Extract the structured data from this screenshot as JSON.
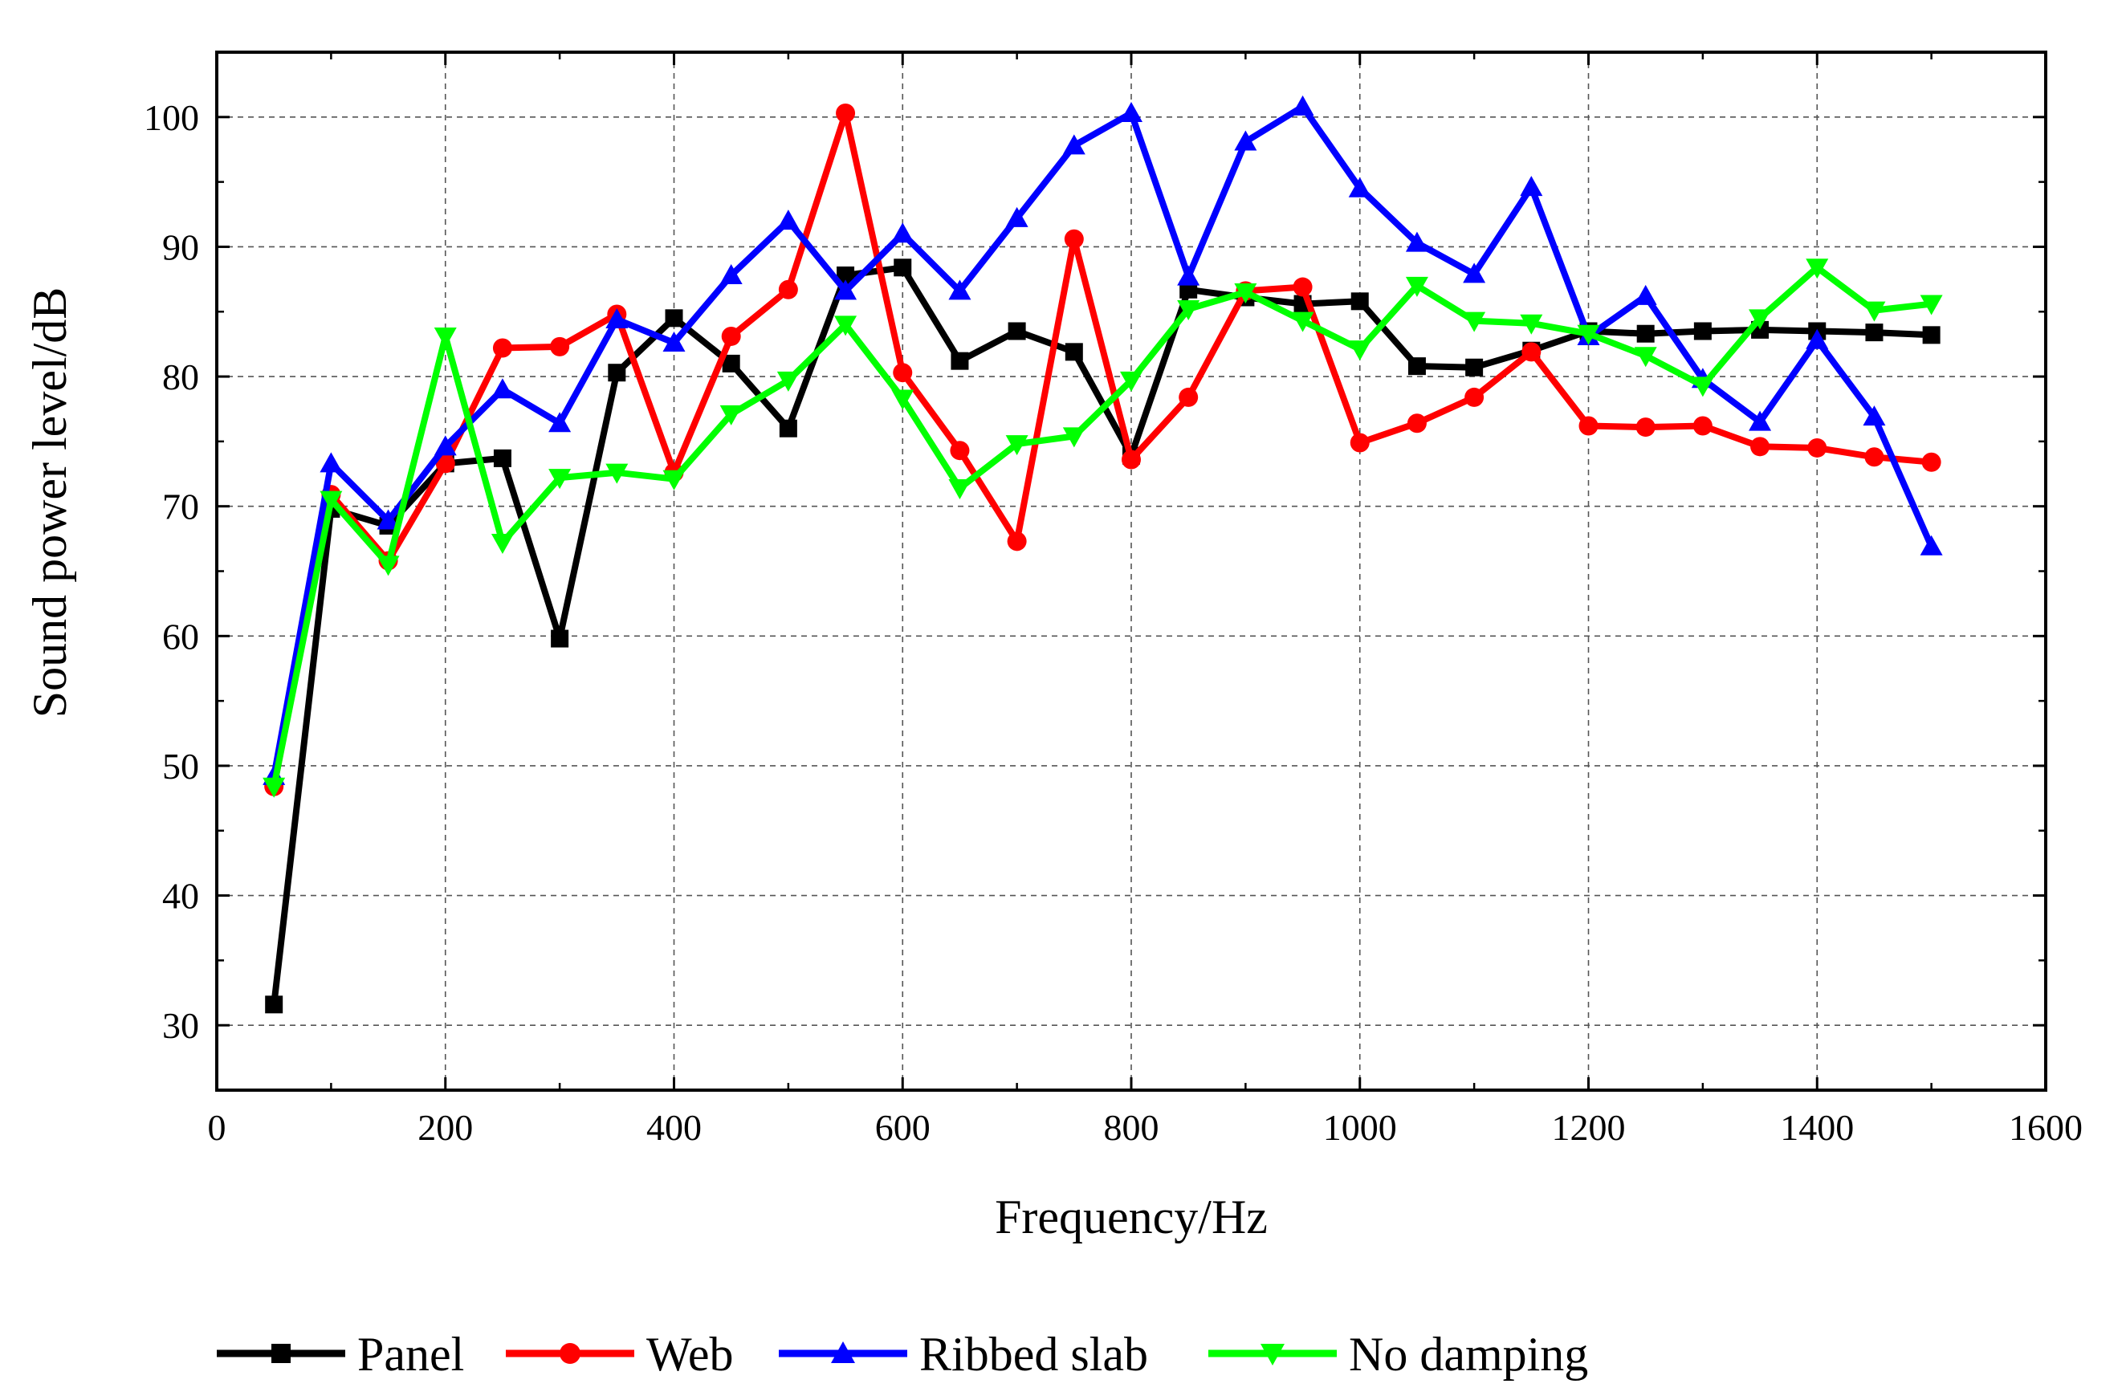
{
  "chart_data": {
    "type": "line",
    "title": "",
    "xlabel": "Frequency/Hz",
    "ylabel": "Sound power level/dB",
    "xlim": [
      0,
      1600
    ],
    "ylim": [
      25,
      105
    ],
    "xticks": [
      0,
      200,
      400,
      600,
      800,
      1000,
      1200,
      1400,
      1600
    ],
    "yticks": [
      30,
      40,
      50,
      60,
      70,
      80,
      90,
      100
    ],
    "grid": true,
    "legend_position": "bottom",
    "x": [
      50,
      100,
      150,
      200,
      250,
      300,
      350,
      400,
      450,
      500,
      550,
      600,
      650,
      700,
      750,
      800,
      850,
      900,
      950,
      1000,
      1050,
      1100,
      1150,
      1200,
      1250,
      1300,
      1350,
      1400,
      1450,
      1500
    ],
    "series": [
      {
        "name": "Panel",
        "color": "#000000",
        "marker": "square",
        "values": [
          31.6,
          69.8,
          68.5,
          73.3,
          73.7,
          59.8,
          80.3,
          84.5,
          81.0,
          76.0,
          87.8,
          88.4,
          81.2,
          83.5,
          81.9,
          73.9,
          86.7,
          86.1,
          85.6,
          85.8,
          80.8,
          80.7,
          82.0,
          83.5,
          83.3,
          83.5,
          83.6,
          83.5,
          83.4,
          83.2
        ]
      },
      {
        "name": "Web",
        "color": "#ff0000",
        "marker": "circle",
        "values": [
          48.4,
          70.9,
          65.8,
          73.3,
          82.2,
          82.3,
          84.8,
          72.6,
          83.1,
          86.7,
          100.3,
          80.3,
          74.3,
          67.3,
          90.6,
          73.6,
          78.4,
          86.6,
          86.9,
          74.9,
          76.4,
          78.4,
          81.9,
          76.2,
          76.1,
          76.2,
          74.6,
          74.5,
          73.8,
          73.4
        ]
      },
      {
        "name": "Ribbed slab",
        "color": "#0000ff",
        "marker": "triangle-up",
        "values": [
          49.2,
          73.3,
          68.9,
          74.6,
          79.0,
          76.4,
          84.4,
          82.6,
          87.8,
          92.0,
          86.6,
          91.0,
          86.6,
          92.2,
          97.8,
          100.3,
          87.7,
          98.1,
          100.8,
          94.5,
          90.3,
          87.9,
          94.6,
          83.1,
          86.2,
          79.8,
          76.5,
          82.8,
          76.9,
          66.9
        ]
      },
      {
        "name": "No damping",
        "color": "#00ff00",
        "marker": "triangle-down",
        "values": [
          48.4,
          70.5,
          65.5,
          83.1,
          67.2,
          72.2,
          72.6,
          72.1,
          77.1,
          79.7,
          84.0,
          78.3,
          71.4,
          74.8,
          75.4,
          79.7,
          85.2,
          86.5,
          84.3,
          82.1,
          87.0,
          84.3,
          84.1,
          83.3,
          81.6,
          79.3,
          84.5,
          88.4,
          85.1,
          85.6
        ]
      }
    ]
  }
}
